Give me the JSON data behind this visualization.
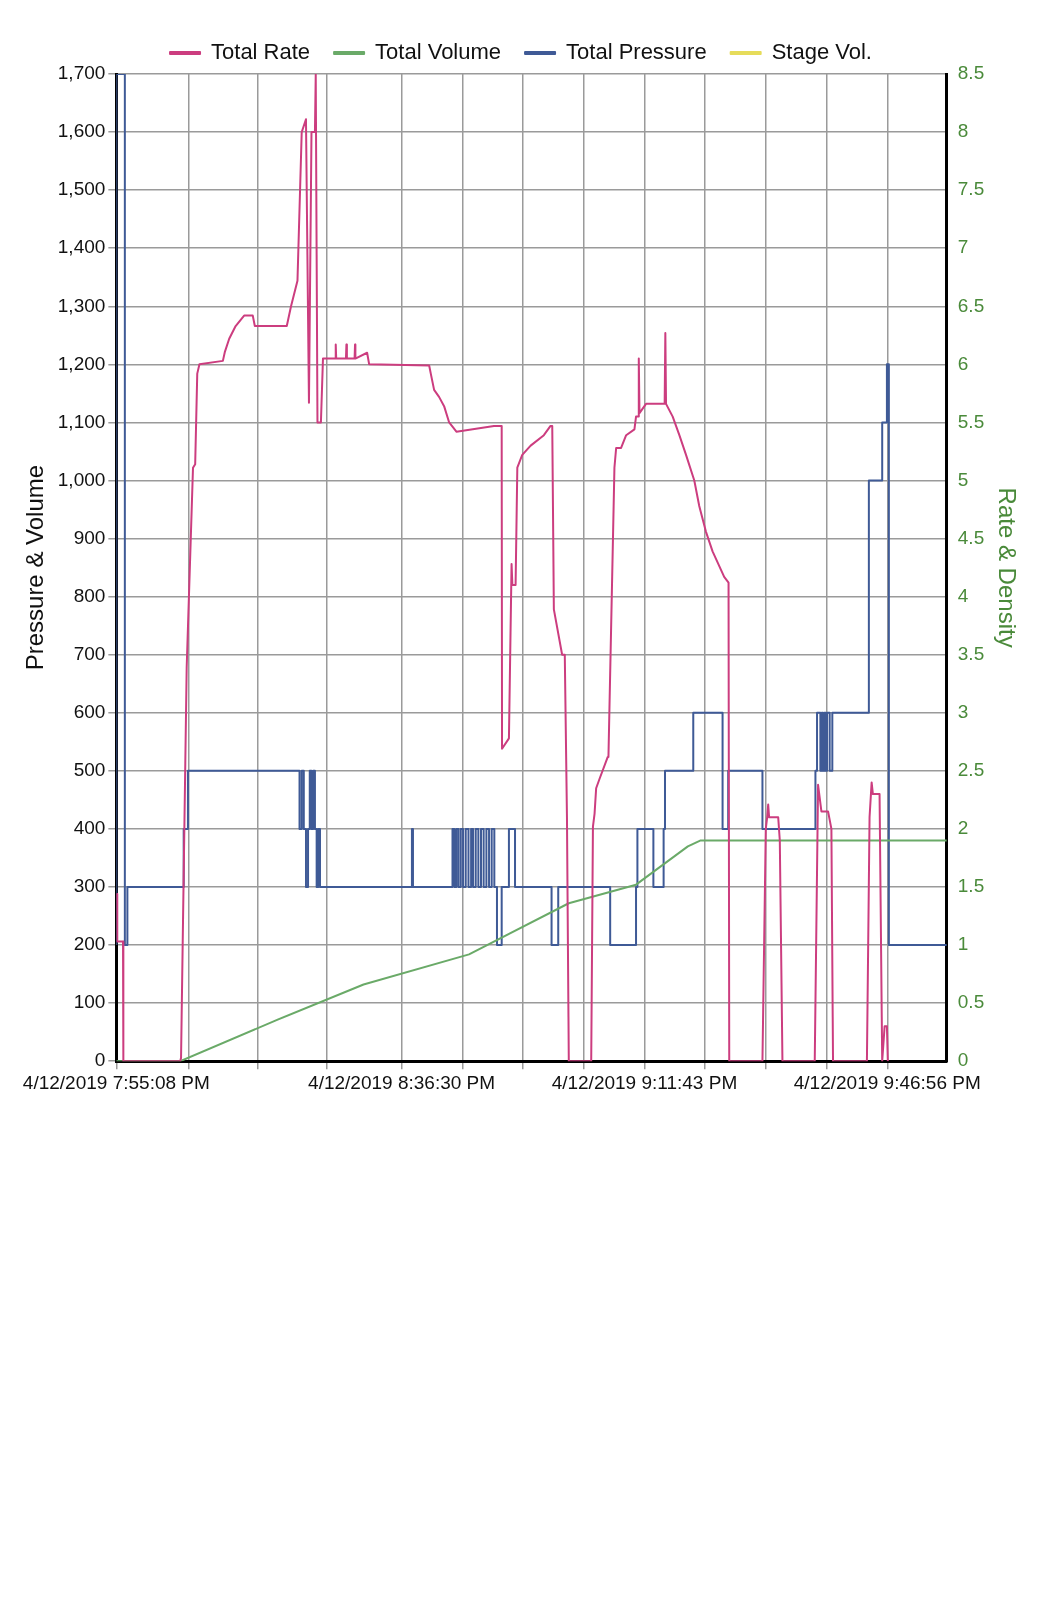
{
  "chart_data": {
    "type": "line",
    "ylabel": "Pressure & Volume",
    "y2label": "Rate & Density",
    "legend": "top",
    "grid": true,
    "xlim": [
      "2019-04-12T19:55:08",
      "2019-04-12T21:55:34"
    ],
    "xticks": [
      {
        "value": "2019-04-12T19:55:08",
        "label": "4/12/2019 7:55:08 PM"
      },
      {
        "value": "2019-04-12T20:05:38",
        "label": null
      },
      {
        "value": "2019-04-12T20:15:39",
        "label": null
      },
      {
        "value": "2019-04-12T20:25:40",
        "label": null
      },
      {
        "value": "2019-04-12T20:36:30",
        "label": "4/12/2019 8:36:30 PM"
      },
      {
        "value": "2019-04-12T20:45:18",
        "label": null
      },
      {
        "value": "2019-04-12T20:54:06",
        "label": null
      },
      {
        "value": "2019-04-12T21:02:55",
        "label": null
      },
      {
        "value": "2019-04-12T21:11:43",
        "label": "4/12/2019 9:11:43 PM"
      },
      {
        "value": "2019-04-12T21:20:32",
        "label": null
      },
      {
        "value": "2019-04-12T21:29:20",
        "label": null
      },
      {
        "value": "2019-04-12T21:38:08",
        "label": null
      },
      {
        "value": "2019-04-12T21:46:56",
        "label": "4/12/2019 9:46:56 PM"
      }
    ],
    "ylim": [
      0,
      1700
    ],
    "yticks": [
      0,
      100,
      200,
      300,
      400,
      500,
      600,
      700,
      800,
      900,
      {
        "value": 1000,
        "label": "1,000"
      },
      {
        "value": 1100,
        "label": "1,100"
      },
      {
        "value": 1200,
        "label": "1,200"
      },
      {
        "value": 1300,
        "label": "1,300"
      },
      {
        "value": 1400,
        "label": "1,400"
      },
      {
        "value": 1500,
        "label": "1,500"
      },
      {
        "value": 1600,
        "label": "1,600"
      },
      {
        "value": 1700,
        "label": "1,700"
      }
    ],
    "y2lim": [
      0,
      8.5
    ],
    "y2ticks": [
      0,
      0.5,
      1,
      1.5,
      2,
      2.5,
      3,
      3.5,
      4,
      4.5,
      5,
      5.5,
      6,
      6.5,
      7,
      7.5,
      8,
      8.5
    ],
    "series": [
      {
        "name": "Total Rate",
        "color": "#cc3d7f",
        "axis": "y2",
        "type": "line",
        "x": [
          "2019-04-12T19:55:08",
          "2019-04-12T19:55:14",
          "2019-04-12T19:55:16",
          "2019-04-12T19:56:06",
          "2019-04-12T19:56:09",
          "2019-04-12T20:04:24",
          "2019-04-12T20:04:31",
          "2019-04-12T20:05:20",
          "2019-04-12T20:06:15",
          "2019-04-12T20:06:34",
          "2019-04-12T20:06:52",
          "2019-04-12T20:07:11",
          "2019-04-12T20:10:35",
          "2019-04-12T20:10:53",
          "2019-04-12T20:11:30",
          "2019-04-12T20:12:26",
          "2019-04-12T20:13:40",
          "2019-04-12T20:14:55",
          "2019-04-12T20:15:13",
          "2019-04-12T20:19:51",
          "2019-04-12T20:20:28",
          "2019-04-12T20:21:24",
          "2019-04-12T20:22:01",
          "2019-04-12T20:22:38",
          "2019-04-12T20:23:04",
          "2019-04-12T20:23:26",
          "2019-04-12T20:23:56",
          "2019-04-12T20:24:03",
          "2019-04-12T20:24:18",
          "2019-04-12T20:24:48",
          "2019-04-12T20:25:06",
          "2019-04-12T20:26:54",
          "2019-04-12T20:26:57",
          "2019-04-12T20:27:01",
          "2019-04-12T20:28:26",
          "2019-04-12T20:28:30",
          "2019-04-12T20:28:34",
          "2019-04-12T20:29:41",
          "2019-04-12T20:29:45",
          "2019-04-12T20:29:48",
          "2019-04-12T20:31:30",
          "2019-04-12T20:31:48",
          "2019-04-12T20:40:30",
          "2019-04-12T20:40:44",
          "2019-04-12T20:41:13",
          "2019-04-12T20:41:56",
          "2019-04-12T20:42:40",
          "2019-04-12T20:43:24",
          "2019-04-12T20:44:27",
          "2019-04-12T20:49:54",
          "2019-04-12T20:51:01",
          "2019-04-12T20:51:04",
          "2019-04-12T20:52:04",
          "2019-04-12T20:52:27",
          "2019-04-12T20:52:34",
          "2019-04-12T20:53:02",
          "2019-04-12T20:53:17",
          "2019-04-12T20:54:00",
          "2019-04-12T20:55:13",
          "2019-04-12T20:57:08",
          "2019-04-12T20:58:06",
          "2019-04-12T20:58:21",
          "2019-04-12T20:58:35",
          "2019-04-12T20:59:47",
          "2019-04-12T21:00:10",
          "2019-04-12T21:00:29",
          "2019-04-12T21:00:45",
          "2019-04-12T21:04:00",
          "2019-04-12T21:04:15",
          "2019-04-12T21:04:29",
          "2019-04-12T21:04:43",
          "2019-04-12T21:05:12",
          "2019-04-12T21:06:24",
          "2019-04-12T21:06:30",
          "2019-04-12T21:07:22",
          "2019-04-12T21:07:37",
          "2019-04-12T21:08:20",
          "2019-04-12T21:09:04",
          "2019-04-12T21:10:16",
          "2019-04-12T21:10:30",
          "2019-04-12T21:10:48",
          "2019-04-12T21:10:54",
          "2019-04-12T21:11:00",
          "2019-04-12T21:11:57",
          "2019-04-12T21:13:53",
          "2019-04-12T21:14:39",
          "2019-04-12T21:14:45",
          "2019-04-12T21:14:51",
          "2019-04-12T21:15:49",
          "2019-04-12T21:16:47",
          "2019-04-12T21:17:45",
          "2019-04-12T21:18:57",
          "2019-04-12T21:19:40",
          "2019-04-12T21:20:38",
          "2019-04-12T21:21:36",
          "2019-04-12T21:23:17",
          "2019-04-12T21:23:55",
          "2019-04-12T21:24:01",
          "2019-04-12T21:28:50",
          "2019-04-12T21:29:19",
          "2019-04-12T21:29:31",
          "2019-04-12T21:29:40",
          "2019-04-12T21:29:48",
          "2019-04-12T21:31:07",
          "2019-04-12T21:31:21",
          "2019-04-12T21:31:44",
          "2019-04-12T21:36:25",
          "2019-04-12T21:36:54",
          "2019-04-12T21:37:23",
          "2019-04-12T21:38:21",
          "2019-04-12T21:38:50",
          "2019-04-12T21:39:04",
          "2019-04-12T21:43:59",
          "2019-04-12T21:44:22",
          "2019-04-12T21:44:40",
          "2019-04-12T21:44:51",
          "2019-04-12T21:45:49",
          "2019-04-12T21:46:12",
          "2019-04-12T21:46:33",
          "2019-04-12T21:46:53",
          "2019-04-12T21:47:01"
        ],
        "values": [
          1.44,
          1.44,
          1.03,
          1.03,
          0,
          0,
          0.03,
          3.39,
          5.11,
          5.14,
          5.92,
          6.0,
          6.03,
          6.11,
          6.22,
          6.33,
          6.42,
          6.42,
          6.33,
          6.33,
          6.5,
          6.72,
          8.0,
          8.11,
          5.67,
          8.0,
          8.0,
          8.5,
          5.5,
          5.5,
          6.05,
          6.05,
          6.17,
          6.05,
          6.05,
          6.17,
          6.05,
          6.05,
          6.17,
          6.05,
          6.1,
          6.0,
          5.99,
          5.92,
          5.78,
          5.72,
          5.64,
          5.5,
          5.42,
          5.47,
          5.47,
          2.69,
          2.78,
          4.28,
          4.1,
          4.1,
          5.11,
          5.22,
          5.3,
          5.39,
          5.47,
          5.47,
          3.89,
          3.5,
          3.5,
          2.1,
          0,
          0,
          2.02,
          2.13,
          2.35,
          2.43,
          2.62,
          2.62,
          5.11,
          5.28,
          5.28,
          5.39,
          5.44,
          5.55,
          5.55,
          6.05,
          5.58,
          5.66,
          5.66,
          5.66,
          6.27,
          5.66,
          5.55,
          5.39,
          5.22,
          5.0,
          4.78,
          4.56,
          4.39,
          4.17,
          4.12,
          0,
          0,
          2.0,
          2.1,
          2.21,
          2.1,
          2.1,
          1.9,
          0,
          0,
          2.38,
          2.15,
          2.15,
          2.0,
          0,
          0,
          2.1,
          2.4,
          2.3,
          2.3,
          0,
          0.3,
          0.3,
          0
        ]
      },
      {
        "name": "Total Volume",
        "color": "#6aaa68",
        "type": "line",
        "x": [
          "2019-04-12T19:55:08",
          "2019-04-12T20:04:24",
          "2019-04-12T20:18:37",
          "2019-04-12T20:30:59",
          "2019-04-12T20:46:17",
          "2019-04-12T21:00:45",
          "2019-04-12T21:10:30",
          "2019-04-12T21:18:01",
          "2019-04-12T21:19:48",
          "2019-04-12T21:55:34"
        ],
        "values": [
          0,
          0,
          72,
          132,
          184,
          272,
          304,
          370,
          380,
          380
        ]
      },
      {
        "name": "Total Pressure",
        "color": "#3f5a96",
        "type": "step",
        "x": [
          "2019-04-12T19:55:08",
          "2019-04-12T19:56:22",
          "2019-04-12T19:56:44",
          "2019-04-12T20:04:54",
          "2019-04-12T20:05:31",
          "2019-04-12T20:21:42",
          "2019-04-12T20:22:01",
          "2019-04-12T20:22:19",
          "2019-04-12T20:22:38",
          "2019-04-12T20:22:56",
          "2019-04-12T20:23:11",
          "2019-04-12T20:23:26",
          "2019-04-12T20:23:41",
          "2019-04-12T20:23:56",
          "2019-04-12T20:24:11",
          "2019-04-12T20:24:26",
          "2019-04-12T20:24:40",
          "2019-04-12T20:38:00",
          "2019-04-12T20:38:09",
          "2019-04-12T20:43:53",
          "2019-04-12T20:44:10",
          "2019-04-12T20:44:27",
          "2019-04-12T20:44:45",
          "2019-04-12T20:45:05",
          "2019-04-12T20:45:25",
          "2019-04-12T20:45:48",
          "2019-04-12T20:46:12",
          "2019-04-12T20:46:35",
          "2019-04-12T20:46:52",
          "2019-04-12T20:47:15",
          "2019-04-12T20:47:38",
          "2019-04-12T20:48:01",
          "2019-04-12T20:48:24",
          "2019-04-12T20:48:48",
          "2019-04-12T20:49:11",
          "2019-04-12T20:49:34",
          "2019-04-12T20:49:57",
          "2019-04-12T20:50:20",
          "2019-04-12T20:51:01",
          "2019-04-12T20:52:04",
          "2019-04-12T20:52:57",
          "2019-04-12T20:58:15",
          "2019-04-12T20:59:13",
          "2019-04-12T21:06:45",
          "2019-04-12T21:10:30",
          "2019-04-12T21:10:42",
          "2019-04-12T21:13:01",
          "2019-04-12T21:14:30",
          "2019-04-12T21:14:42",
          "2019-04-12T21:18:48",
          "2019-04-12T21:23:03",
          "2019-04-12T21:23:52",
          "2019-04-12T21:28:50",
          "2019-04-12T21:36:31",
          "2019-04-12T21:36:45",
          "2019-04-12T21:37:14",
          "2019-04-12T21:37:26",
          "2019-04-12T21:37:37",
          "2019-04-12T21:37:49",
          "2019-04-12T21:38:01",
          "2019-04-12T21:38:12",
          "2019-04-12T21:38:35",
          "2019-04-12T21:38:58",
          "2019-04-12T21:44:16",
          "2019-04-12T21:46:12",
          "2019-04-12T21:46:53",
          "2019-04-12T21:47:10",
          "2019-04-12T21:52:54",
          "2019-04-12T21:55:34"
        ],
        "values": [
          200,
          1700,
          200,
          300,
          400,
          500,
          400,
          500,
          400,
          300,
          400,
          500,
          400,
          500,
          400,
          300,
          400,
          300,
          400,
          300,
          400,
          300,
          400,
          300,
          400,
          300,
          400,
          300,
          400,
          300,
          400,
          300,
          400,
          300,
          400,
          300,
          400,
          300,
          200,
          300,
          400,
          300,
          200,
          300,
          200,
          300,
          400,
          300,
          400,
          500,
          600,
          400,
          500,
          400,
          500,
          600,
          500,
          600,
          500,
          600,
          500,
          600,
          500,
          600,
          1000,
          1100,
          1200,
          200,
          200
        ]
      },
      {
        "name": "Stage Vol.",
        "color": "#e6dc5a",
        "type": "line"
      }
    ]
  }
}
